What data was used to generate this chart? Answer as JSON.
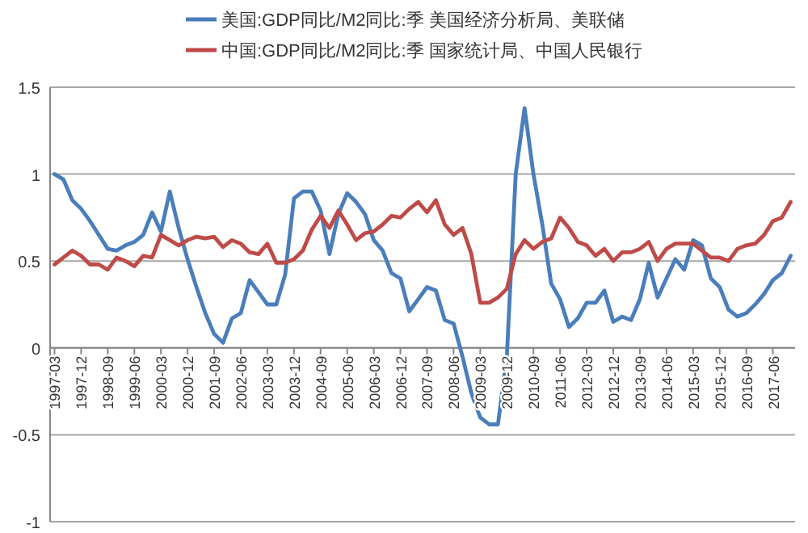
{
  "chart_data": {
    "type": "line",
    "categories": [
      "1997-03",
      null,
      null,
      "1997-12",
      null,
      null,
      "1998-09",
      null,
      null,
      "1999-06",
      null,
      null,
      "2000-03",
      null,
      null,
      "2000-12",
      null,
      null,
      "2001-09",
      null,
      null,
      "2002-06",
      null,
      null,
      "2003-03",
      null,
      null,
      "2003-12",
      null,
      null,
      "2004-09",
      null,
      null,
      "2005-06",
      null,
      null,
      "2006-03",
      null,
      null,
      "2006-12",
      null,
      null,
      "2007-09",
      null,
      null,
      "2008-06",
      null,
      null,
      "2009-03",
      null,
      null,
      "2009-12",
      null,
      null,
      "2010-09",
      null,
      null,
      "2011-06",
      null,
      null,
      "2012-03",
      null,
      null,
      "2012-12",
      null,
      null,
      "2013-09",
      null,
      null,
      "2014-06",
      null,
      null,
      "2015-03",
      null,
      null,
      "2015-12",
      null,
      null,
      "2016-09",
      null,
      null,
      "2017-06",
      null,
      null
    ],
    "series": [
      {
        "name": "美国:GDP同比/M2同比:季 美国经济分析局、美联储",
        "color": "#4a7ebb",
        "values": [
          1.0,
          0.97,
          0.85,
          0.8,
          0.73,
          0.65,
          0.57,
          0.56,
          0.59,
          0.61,
          0.65,
          0.78,
          0.67,
          0.9,
          0.69,
          0.51,
          0.35,
          0.2,
          0.08,
          0.03,
          0.17,
          0.2,
          0.39,
          0.32,
          0.25,
          0.25,
          0.42,
          0.86,
          0.9,
          0.9,
          0.79,
          0.54,
          0.77,
          0.89,
          0.84,
          0.77,
          0.62,
          0.56,
          0.43,
          0.4,
          0.21,
          0.28,
          0.35,
          0.33,
          0.16,
          0.14,
          -0.05,
          -0.26,
          -0.4,
          -0.44,
          -0.44,
          -0.05,
          1.0,
          1.38,
          1.0,
          0.71,
          0.37,
          0.28,
          0.12,
          0.17,
          0.26,
          0.26,
          0.33,
          0.15,
          0.18,
          0.16,
          0.28,
          0.49,
          0.29,
          0.4,
          0.51,
          0.45,
          0.62,
          0.59,
          0.4,
          0.35,
          0.22,
          0.18,
          0.2,
          0.25,
          0.31,
          0.39,
          0.43,
          0.53
        ]
      },
      {
        "name": "中国:GDP同比/M2同比:季 国家统计局、中国人民银行",
        "color": "#be4b48",
        "values": [
          0.48,
          0.52,
          0.56,
          0.53,
          0.48,
          0.48,
          0.45,
          0.52,
          0.5,
          0.47,
          0.53,
          0.52,
          0.65,
          0.62,
          0.59,
          0.62,
          0.64,
          0.63,
          0.64,
          0.58,
          0.62,
          0.6,
          0.55,
          0.54,
          0.6,
          0.49,
          0.49,
          0.51,
          0.56,
          0.68,
          0.76,
          0.69,
          0.79,
          0.71,
          0.62,
          0.66,
          0.67,
          0.71,
          0.76,
          0.75,
          0.8,
          0.84,
          0.78,
          0.85,
          0.71,
          0.65,
          0.69,
          0.54,
          0.26,
          0.26,
          0.29,
          0.34,
          0.54,
          0.62,
          0.57,
          0.61,
          0.63,
          0.75,
          0.69,
          0.61,
          0.59,
          0.53,
          0.57,
          0.5,
          0.55,
          0.55,
          0.57,
          0.61,
          0.5,
          0.57,
          0.6,
          0.6,
          0.6,
          0.56,
          0.52,
          0.52,
          0.5,
          0.57,
          0.59,
          0.6,
          0.65,
          0.73,
          0.75,
          0.84
        ]
      }
    ],
    "ylim": [
      -1,
      1.5
    ],
    "yticks": [
      -1,
      -0.5,
      0,
      0.5,
      1,
      1.5
    ],
    "grid": "y",
    "legend": "top",
    "marker": "none",
    "line_style": "solid"
  }
}
